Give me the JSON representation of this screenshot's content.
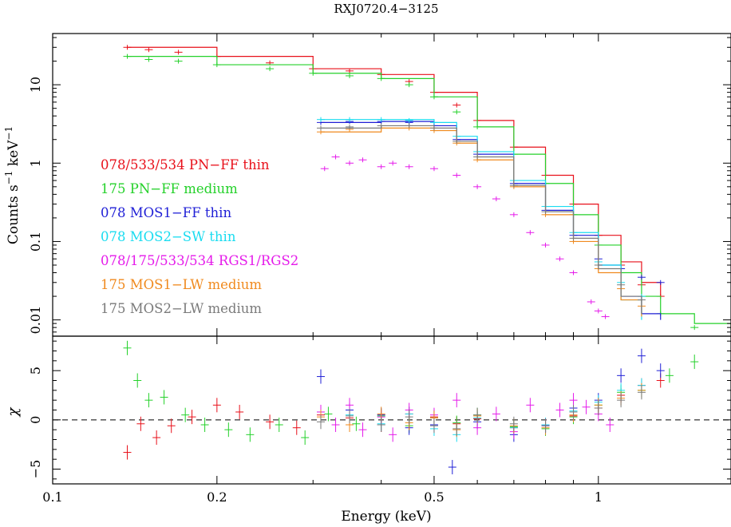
{
  "chart_data": {
    "type": "scatter",
    "title": "RXJ0720.4−3125",
    "xlabel": "Energy (keV)",
    "x_scale": "log",
    "xlim": [
      0.1,
      1.75
    ],
    "x_ticks": [
      {
        "value": 0.1,
        "label": "0.1"
      },
      {
        "value": 0.2,
        "label": "0.2"
      },
      {
        "value": 0.5,
        "label": "0.5"
      },
      {
        "value": 1,
        "label": "1"
      }
    ],
    "top_panel": {
      "ylabel_parts": [
        "Counts s",
        "−1",
        " keV",
        "−1"
      ],
      "y_scale": "log",
      "ylim": [
        0.0062,
        45
      ],
      "y_ticks": [
        {
          "value": 10,
          "label": "10"
        },
        {
          "value": 1,
          "label": "1"
        },
        {
          "value": 0.1,
          "label": "0.1"
        },
        {
          "value": 0.01,
          "label": "0.01"
        }
      ]
    },
    "bottom_panel": {
      "ylabel": "χ",
      "ylim": [
        -6.5,
        8.5
      ],
      "y_ticks": [
        {
          "value": 5,
          "label": "5"
        },
        {
          "value": 0,
          "label": "0"
        },
        {
          "value": -5,
          "label": "−5"
        }
      ],
      "reference_line": {
        "y": 0,
        "style": "dashed"
      }
    },
    "legend": {
      "placement": "left, inside upper panel",
      "entries": [
        {
          "label": "078/533/534 PN−FF thin",
          "color": "#e8101a"
        },
        {
          "label": "175 PN−FF medium",
          "color": "#24d12a"
        },
        {
          "label": "078 MOS1−FF thin",
          "color": "#1f1fd6"
        },
        {
          "label": "078 MOS2−SW thin",
          "color": "#19dcf0"
        },
        {
          "label": "078/175/533/534 RGS1/RGS2",
          "color": "#e51bea"
        },
        {
          "label": "175 MOS1−LW medium",
          "color": "#f08a1e"
        },
        {
          "label": "175 MOS2−LW medium",
          "color": "#7a7a7a"
        }
      ]
    },
    "series": [
      {
        "name": "078/533/534 PN−FF thin",
        "color": "#e8101a",
        "spectrum": {
          "x": [
            0.137,
            0.15,
            0.17,
            0.2,
            0.25,
            0.3,
            0.35,
            0.4,
            0.45,
            0.5,
            0.55,
            0.6,
            0.7,
            0.8,
            0.9,
            1.0,
            1.1,
            1.2,
            1.3
          ],
          "y": [
            30,
            28,
            26,
            23,
            19,
            16,
            15,
            13.5,
            11,
            8,
            5.5,
            3.5,
            1.6,
            0.7,
            0.3,
            0.12,
            0.05,
            0.028,
            0.02
          ]
        },
        "model": {
          "x": [
            0.137,
            0.2,
            0.3,
            0.4,
            0.5,
            0.6,
            0.7,
            0.8,
            0.9,
            1.0,
            1.1,
            1.2,
            1.3
          ],
          "y": [
            30,
            23,
            16,
            13.5,
            8,
            3.5,
            1.6,
            0.7,
            0.3,
            0.12,
            0.055,
            0.03,
            0.02
          ]
        },
        "residuals": {
          "x": [
            0.137,
            0.145,
            0.155,
            0.165,
            0.18,
            0.2,
            0.22,
            0.25,
            0.28,
            0.31,
            0.35,
            0.4,
            0.45,
            0.5,
            0.55,
            0.6,
            0.7,
            0.8,
            0.9,
            1.0,
            1.1,
            1.2,
            1.3
          ],
          "y": [
            -3.3,
            -0.4,
            -1.8,
            -0.6,
            0.3,
            1.5,
            0.8,
            -0.2,
            -0.8,
            0.5,
            0.2,
            -0.5,
            0.6,
            0.3,
            -0.4,
            0.1,
            -0.8,
            -0.5,
            0.4,
            1.2,
            2.5,
            3.5,
            4.0
          ]
        }
      },
      {
        "name": "175 PN−FF medium",
        "color": "#24d12a",
        "spectrum": {
          "x": [
            0.137,
            0.15,
            0.17,
            0.2,
            0.25,
            0.3,
            0.35,
            0.4,
            0.45,
            0.5,
            0.55,
            0.6,
            0.7,
            0.8,
            0.9,
            1.0,
            1.1,
            1.2,
            1.3,
            1.5
          ],
          "y": [
            23,
            21,
            20,
            18,
            16,
            14,
            13,
            12,
            10,
            7,
            4.5,
            2.9,
            1.3,
            0.55,
            0.22,
            0.09,
            0.04,
            0.02,
            0.012,
            0.008
          ]
        },
        "model": {
          "x": [
            0.137,
            0.2,
            0.3,
            0.4,
            0.5,
            0.6,
            0.7,
            0.8,
            0.9,
            1.0,
            1.1,
            1.2,
            1.3,
            1.5,
            1.75
          ],
          "y": [
            23,
            18,
            14,
            12,
            7,
            2.9,
            1.3,
            0.55,
            0.22,
            0.09,
            0.04,
            0.02,
            0.012,
            0.009,
            0.0075
          ]
        },
        "residuals": {
          "x": [
            0.137,
            0.143,
            0.15,
            0.16,
            0.175,
            0.19,
            0.21,
            0.23,
            0.26,
            0.29,
            0.32,
            0.36,
            0.4,
            0.45,
            0.5,
            0.55,
            0.6,
            0.7,
            0.8,
            0.9,
            1.0,
            1.1,
            1.2,
            1.35,
            1.5
          ],
          "y": [
            7.3,
            4.0,
            2.0,
            2.3,
            0.5,
            -0.5,
            -1.0,
            -1.5,
            -0.5,
            -1.8,
            0.6,
            -0.4,
            0.4,
            -0.6,
            0.2,
            -0.3,
            0.5,
            -0.7,
            -0.9,
            0.3,
            1.5,
            2.8,
            3.0,
            4.5,
            5.9
          ]
        }
      },
      {
        "name": "078 MOS1−FF thin",
        "color": "#1f1fd6",
        "spectrum": {
          "x": [
            0.31,
            0.35,
            0.4,
            0.45,
            0.5,
            0.55,
            0.6,
            0.7,
            0.8,
            0.9,
            1.0,
            1.1,
            1.2,
            1.3
          ],
          "y": [
            3.3,
            3.4,
            3.4,
            3.3,
            3.0,
            2.0,
            1.3,
            0.55,
            0.25,
            0.12,
            0.06,
            0.045,
            0.035,
            0.03
          ]
        },
        "model": {
          "x": [
            0.31,
            0.4,
            0.5,
            0.55,
            0.6,
            0.7,
            0.8,
            0.9,
            1.0,
            1.1,
            1.2,
            1.3
          ],
          "y": [
            3.3,
            3.4,
            3.0,
            2.0,
            1.3,
            0.55,
            0.25,
            0.12,
            0.05,
            0.02,
            0.012,
            0.01
          ]
        },
        "residuals": {
          "x": [
            0.31,
            0.35,
            0.4,
            0.45,
            0.5,
            0.54,
            0.6,
            0.7,
            0.8,
            0.9,
            1.0,
            1.1,
            1.2,
            1.3
          ],
          "y": [
            4.4,
            1.0,
            0.5,
            -0.8,
            -0.5,
            -4.8,
            -0.2,
            -1.5,
            -0.6,
            1.2,
            2.0,
            4.5,
            6.5,
            5.0
          ]
        }
      },
      {
        "name": "078 MOS2−SW thin",
        "color": "#19dcf0",
        "spectrum": {
          "x": [
            0.31,
            0.35,
            0.4,
            0.45,
            0.5,
            0.55,
            0.6,
            0.7,
            0.8,
            0.9,
            1.0,
            1.1,
            1.2
          ],
          "y": [
            3.6,
            3.6,
            3.6,
            3.5,
            3.3,
            2.2,
            1.4,
            0.6,
            0.28,
            0.13,
            0.055,
            0.03,
            0.02
          ]
        },
        "model": {
          "x": [
            0.31,
            0.4,
            0.5,
            0.55,
            0.6,
            0.7,
            0.8,
            0.9,
            1.0,
            1.1,
            1.2
          ],
          "y": [
            3.6,
            3.6,
            3.3,
            2.2,
            1.4,
            0.6,
            0.28,
            0.13,
            0.05,
            0.018,
            0.01
          ]
        },
        "residuals": {
          "x": [
            0.31,
            0.35,
            0.4,
            0.45,
            0.5,
            0.55,
            0.6,
            0.7,
            0.8,
            0.9,
            1.0,
            1.1,
            1.2
          ],
          "y": [
            0.8,
            0.5,
            -0.4,
            0.6,
            -0.9,
            -1.5,
            0.2,
            -0.8,
            -0.5,
            0.9,
            1.8,
            3.0,
            3.5
          ]
        }
      },
      {
        "name": "078/175/533/534 RGS1/RGS2",
        "color": "#e51bea",
        "spectrum": {
          "x": [
            0.315,
            0.33,
            0.35,
            0.37,
            0.4,
            0.42,
            0.45,
            0.5,
            0.55,
            0.6,
            0.65,
            0.7,
            0.75,
            0.8,
            0.85,
            0.9,
            0.97,
            1.0,
            1.03
          ],
          "y": [
            0.85,
            1.2,
            1.0,
            1.1,
            0.9,
            1.0,
            0.9,
            0.85,
            0.7,
            0.5,
            0.35,
            0.22,
            0.13,
            0.09,
            0.06,
            0.04,
            0.017,
            0.013,
            0.011
          ]
        },
        "residuals": {
          "x": [
            0.31,
            0.33,
            0.35,
            0.37,
            0.4,
            0.42,
            0.45,
            0.5,
            0.55,
            0.6,
            0.65,
            0.7,
            0.75,
            0.8,
            0.85,
            0.9,
            0.95,
            1.0,
            1.05
          ],
          "y": [
            0.8,
            -0.5,
            1.5,
            -1.0,
            0.3,
            -1.5,
            1.0,
            0.5,
            2.0,
            -0.8,
            0.6,
            -1.2,
            1.5,
            -0.6,
            1.0,
            2.0,
            1.3,
            0.6,
            -0.5
          ]
        }
      },
      {
        "name": "175 MOS1−LW medium",
        "color": "#f08a1e",
        "spectrum": {
          "x": [
            0.31,
            0.35,
            0.4,
            0.45,
            0.5,
            0.55,
            0.6,
            0.7,
            0.8,
            0.9,
            1.0,
            1.1,
            1.2
          ],
          "y": [
            2.5,
            2.7,
            2.8,
            2.8,
            2.6,
            1.8,
            1.1,
            0.5,
            0.22,
            0.1,
            0.045,
            0.025,
            0.015
          ]
        },
        "model": {
          "x": [
            0.31,
            0.4,
            0.5,
            0.55,
            0.6,
            0.7,
            0.8,
            0.9,
            1.0,
            1.1,
            1.2
          ],
          "y": [
            2.5,
            2.8,
            2.6,
            1.8,
            1.1,
            0.5,
            0.22,
            0.1,
            0.04,
            0.018,
            0.011
          ]
        },
        "residuals": {
          "x": [
            0.31,
            0.35,
            0.4,
            0.45,
            0.5,
            0.55,
            0.6,
            0.7,
            0.8,
            0.9,
            1.0,
            1.1,
            1.2
          ],
          "y": [
            0.3,
            -0.5,
            0.6,
            -0.3,
            0.2,
            -1.0,
            0.4,
            -0.6,
            -0.8,
            0.5,
            1.5,
            2.2,
            3.0
          ]
        }
      },
      {
        "name": "175 MOS2−LW medium",
        "color": "#7a7a7a",
        "spectrum": {
          "x": [
            0.31,
            0.35,
            0.4,
            0.45,
            0.5,
            0.55,
            0.6,
            0.7,
            0.8,
            0.9,
            1.0,
            1.1,
            1.2
          ],
          "y": [
            2.8,
            2.9,
            3.0,
            3.0,
            2.8,
            1.9,
            1.2,
            0.52,
            0.24,
            0.11,
            0.05,
            0.028,
            0.018
          ]
        },
        "model": {
          "x": [
            0.31,
            0.4,
            0.5,
            0.55,
            0.6,
            0.7,
            0.8,
            0.9,
            1.0,
            1.1,
            1.2
          ],
          "y": [
            2.8,
            3.0,
            2.8,
            1.9,
            1.2,
            0.52,
            0.24,
            0.11,
            0.045,
            0.02,
            0.012
          ]
        },
        "residuals": {
          "x": [
            0.31,
            0.35,
            0.4,
            0.45,
            0.5,
            0.55,
            0.6,
            0.7,
            0.8,
            0.9,
            1.0,
            1.1,
            1.2
          ],
          "y": [
            -0.2,
            0.4,
            -0.5,
            0.3,
            -0.6,
            -0.9,
            0.5,
            -0.4,
            -0.6,
            0.8,
            1.2,
            2.0,
            2.8
          ]
        }
      }
    ]
  }
}
